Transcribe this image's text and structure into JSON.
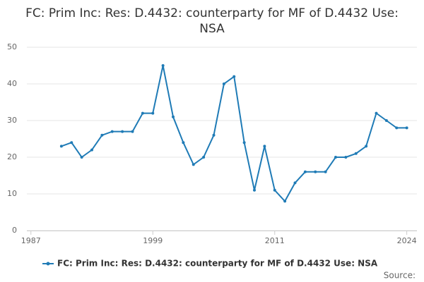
{
  "chart_data": {
    "type": "line",
    "title": "FC: Prim Inc: Res: D.4432: counterparty for MF of D.4432 Use: NSA",
    "source": "Source:",
    "x": [
      1990,
      1991,
      1992,
      1993,
      1994,
      1995,
      1996,
      1997,
      1998,
      1999,
      2000,
      2001,
      2002,
      2003,
      2004,
      2005,
      2006,
      2007,
      2008,
      2009,
      2010,
      2011,
      2012,
      2013,
      2014,
      2015,
      2016,
      2017,
      2018,
      2019,
      2020,
      2021,
      2022,
      2023,
      2024
    ],
    "series": [
      {
        "name": "FC: Prim Inc: Res: D.4432: counterparty for MF of D.4432 Use: NSA",
        "color": "#1f7bb6",
        "values": [
          23,
          24,
          20,
          22,
          26,
          27,
          27,
          27,
          32,
          32,
          45,
          31,
          24,
          18,
          20,
          26,
          40,
          42,
          24,
          11,
          23,
          11,
          8,
          13,
          16,
          16,
          16,
          20,
          20,
          21,
          23,
          32,
          30,
          28,
          28
        ]
      }
    ],
    "xlim": [
      1986.6,
      2025
    ],
    "xticks": [
      1987,
      1999,
      2011,
      2024
    ],
    "ylim": [
      0,
      50
    ],
    "yticks": [
      0,
      10,
      20,
      30,
      40,
      50
    ],
    "grid": true
  }
}
